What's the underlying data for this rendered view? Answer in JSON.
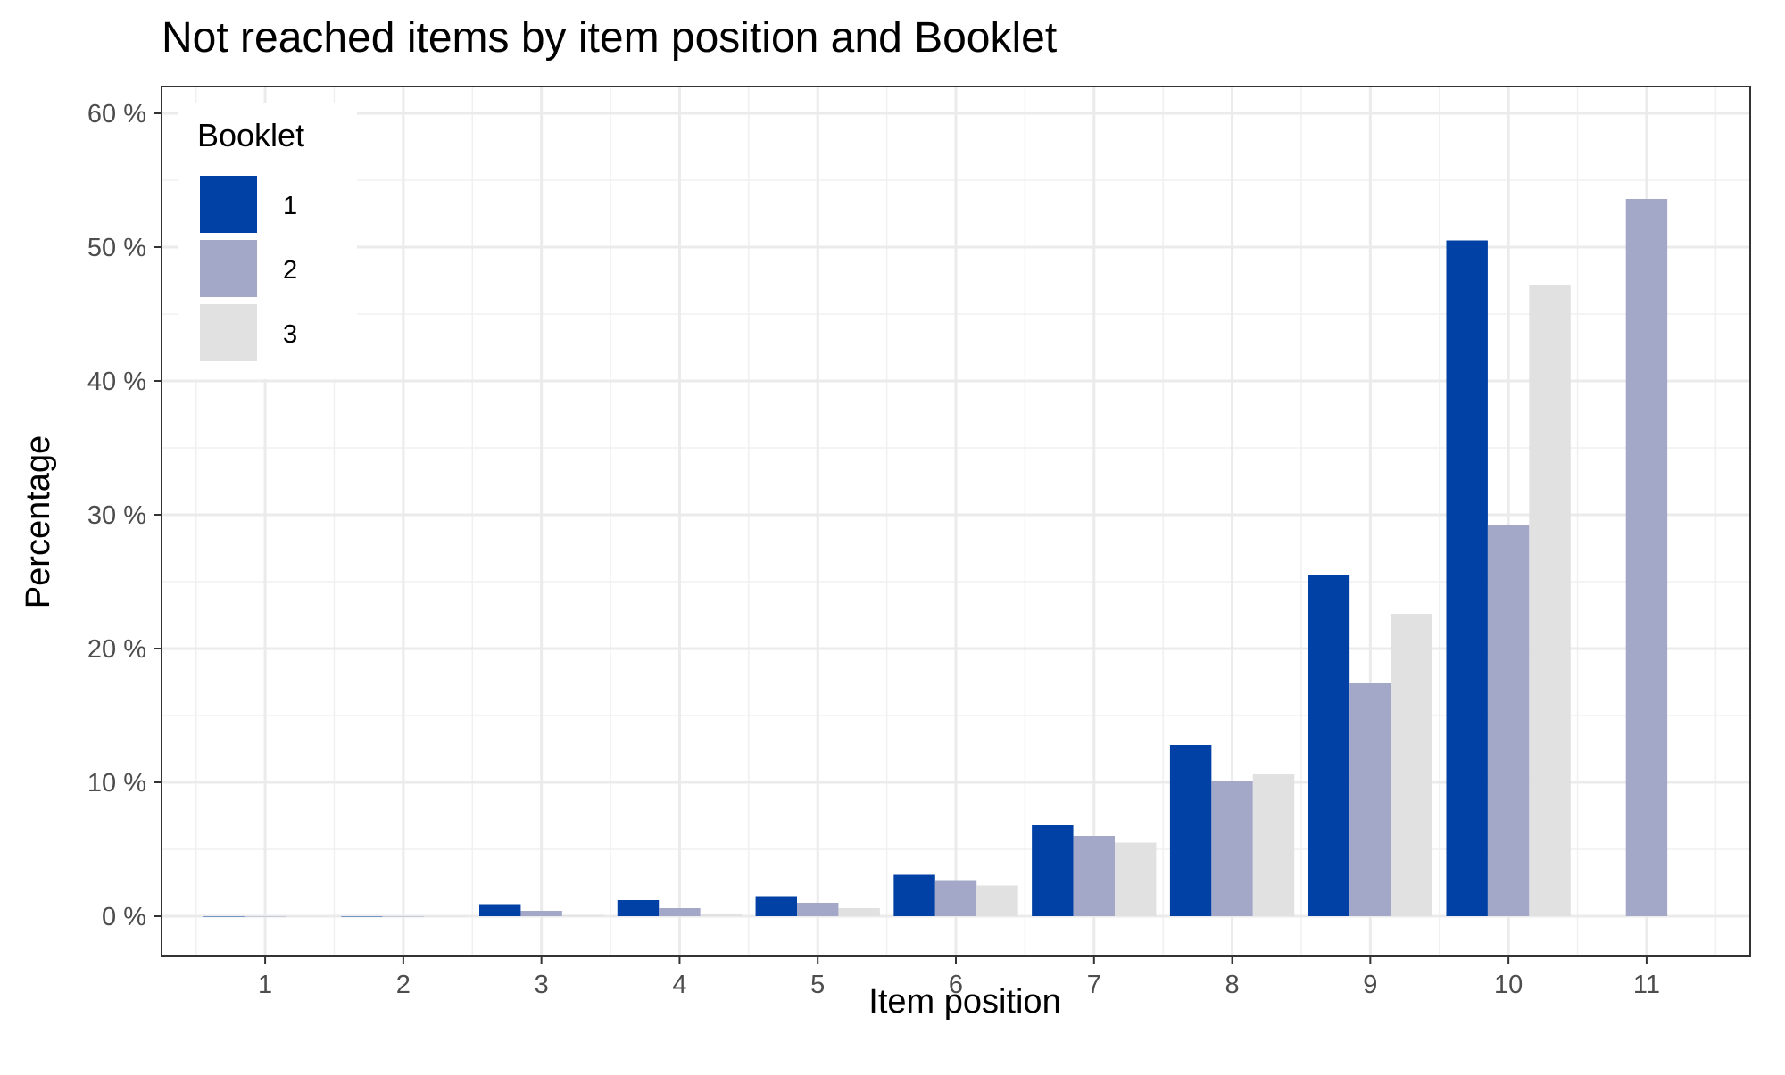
{
  "chart_data": {
    "type": "bar",
    "title": "Not reached items by item position and Booklet",
    "xlabel": "Item position",
    "ylabel": "Percentage",
    "categories": [
      "1",
      "2",
      "3",
      "4",
      "5",
      "6",
      "7",
      "8",
      "9",
      "10",
      "11"
    ],
    "ylim": [
      -3,
      62
    ],
    "yticks": [
      0,
      10,
      20,
      30,
      40,
      50,
      60
    ],
    "ytick_labels": [
      "0 %",
      "10 %",
      "20 %",
      "30 %",
      "40 %",
      "50 %",
      "60 %"
    ],
    "grid": true,
    "legend": {
      "title": "Booklet",
      "position": "top-left"
    },
    "series": [
      {
        "name": "1",
        "color": "#0140a4",
        "values": [
          0,
          0,
          0.9,
          1.2,
          1.5,
          3.1,
          6.8,
          12.8,
          25.5,
          50.5,
          null
        ]
      },
      {
        "name": "2",
        "color": "#a3a8c9",
        "values": [
          0,
          0,
          0.4,
          0.6,
          1.0,
          2.7,
          6.0,
          10.1,
          17.4,
          29.2,
          53.6
        ]
      },
      {
        "name": "3",
        "color": "#e1e1e1",
        "values": [
          0,
          0,
          0.1,
          0.2,
          0.6,
          2.3,
          5.5,
          10.6,
          22.6,
          47.2,
          null
        ]
      }
    ]
  }
}
